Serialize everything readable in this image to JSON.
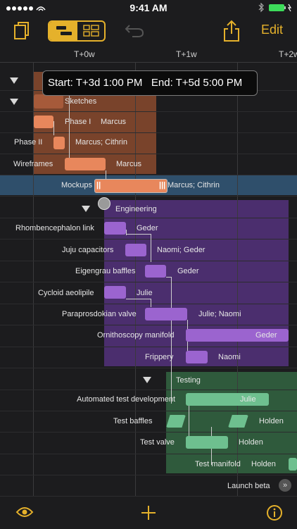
{
  "status_bar": {
    "time": "9:41 AM"
  },
  "toolbar": {
    "edit_label": "Edit"
  },
  "timeline": {
    "ticks": [
      "T+0w",
      "T+1w",
      "T+2w"
    ]
  },
  "tooltip": {
    "text": "Start: T+3d 1:00 PM   End: T+5d 5:00 PM"
  },
  "rows": {
    "sketches": "Sketches",
    "phase1": "Phase I",
    "phase1_assignee": "Marcus",
    "phase2": "Phase II",
    "phase2_assignee": "Marcus; Cithrin",
    "wireframes": "Wireframes",
    "wireframes_assignee": "Marcus",
    "mockups": "Mockups",
    "mockups_assignee": "Marcus; Cithrin",
    "engineering": "Engineering",
    "rhombencephalon": "Rhombencephalon link",
    "rhombencephalon_assignee": "Geder",
    "juju": "Juju capacitors",
    "juju_assignee": "Naomi; Geder",
    "eigengrau": "Eigengrau baffles",
    "eigengrau_assignee": "Geder",
    "cycloid": "Cycloid aeolipile",
    "cycloid_assignee": "Julie",
    "paraprosdokian": "Paraprosdokian valve",
    "paraprosdokian_assignee": "Julie; Naomi",
    "ornithoscopy": "Ornithoscopy manifold",
    "ornithoscopy_assignee": "Geder",
    "frippery": "Frippery",
    "frippery_assignee": "Naomi",
    "testing": "Testing",
    "automated": "Automated test development",
    "automated_assignee": "Julie",
    "test_baffles": "Test baffles",
    "test_baffles_assignee": "Holden",
    "test_valve": "Test valve",
    "test_valve_assignee": "Holden",
    "test_manifold": "Test manifold",
    "test_manifold_assignee": "Holden",
    "launch_beta": "Launch beta"
  },
  "colors": {
    "accent": "#e5b12b",
    "orange": "#e8875c",
    "purple": "#9b64cf",
    "green": "#6ec08f",
    "selection": "#2f4f6b"
  }
}
